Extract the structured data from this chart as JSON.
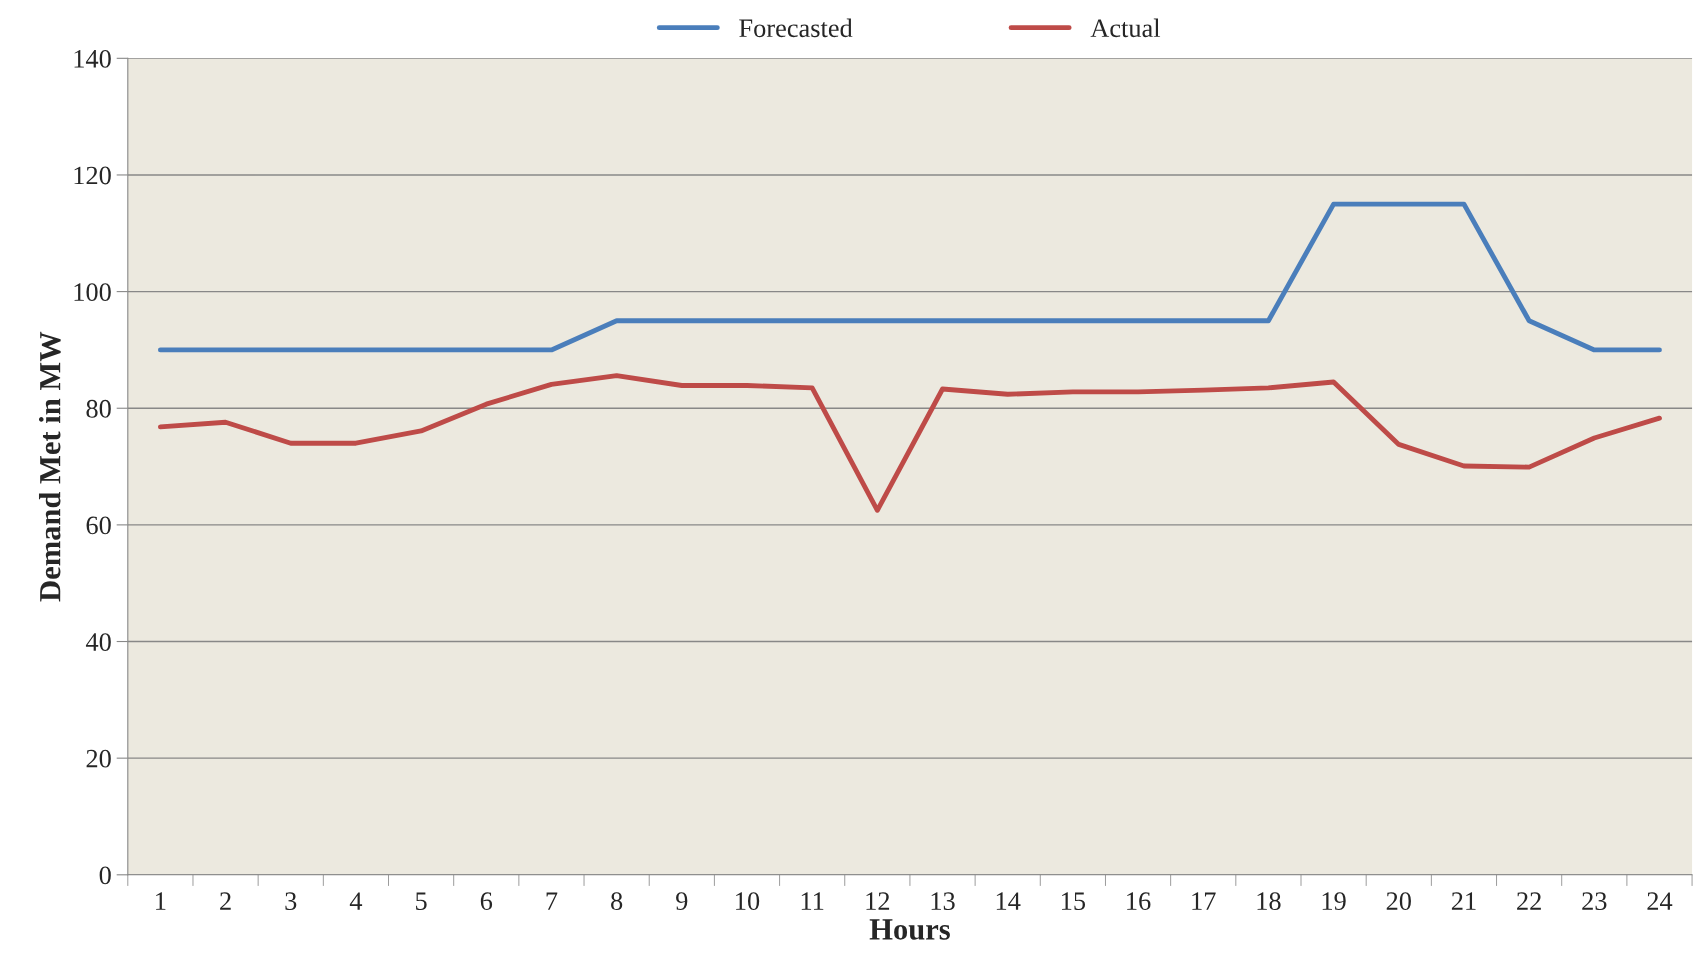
{
  "chart_data": {
    "type": "line",
    "xlabel": "Hours",
    "ylabel": "Demand Met in MW",
    "categories": [
      "1",
      "2",
      "3",
      "4",
      "5",
      "6",
      "7",
      "8",
      "9",
      "10",
      "11",
      "12",
      "13",
      "14",
      "15",
      "16",
      "17",
      "18",
      "19",
      "20",
      "21",
      "22",
      "23",
      "24"
    ],
    "series": [
      {
        "name": "Forecasted",
        "color": "#4a7ebb",
        "values": [
          90,
          90,
          90,
          90,
          90,
          90,
          90,
          95,
          95,
          95,
          95,
          95,
          95,
          95,
          95,
          95,
          95,
          95,
          115,
          115,
          115,
          95,
          90,
          90
        ]
      },
      {
        "name": "Actual",
        "color": "#be4b48",
        "values": [
          76.8,
          77.6,
          74.0,
          74.0,
          76.1,
          80.7,
          84.1,
          85.6,
          83.9,
          83.9,
          83.5,
          62.5,
          83.3,
          82.4,
          82.8,
          82.8,
          83.1,
          83.5,
          84.5,
          73.8,
          70.1,
          69.9,
          74.9,
          78.3
        ]
      }
    ],
    "ylim": [
      0,
      140
    ],
    "yticks": [
      0,
      20,
      40,
      60,
      80,
      100,
      120,
      140
    ],
    "grid": "y",
    "legend": "top",
    "marker": "none",
    "line_style": "solid"
  }
}
